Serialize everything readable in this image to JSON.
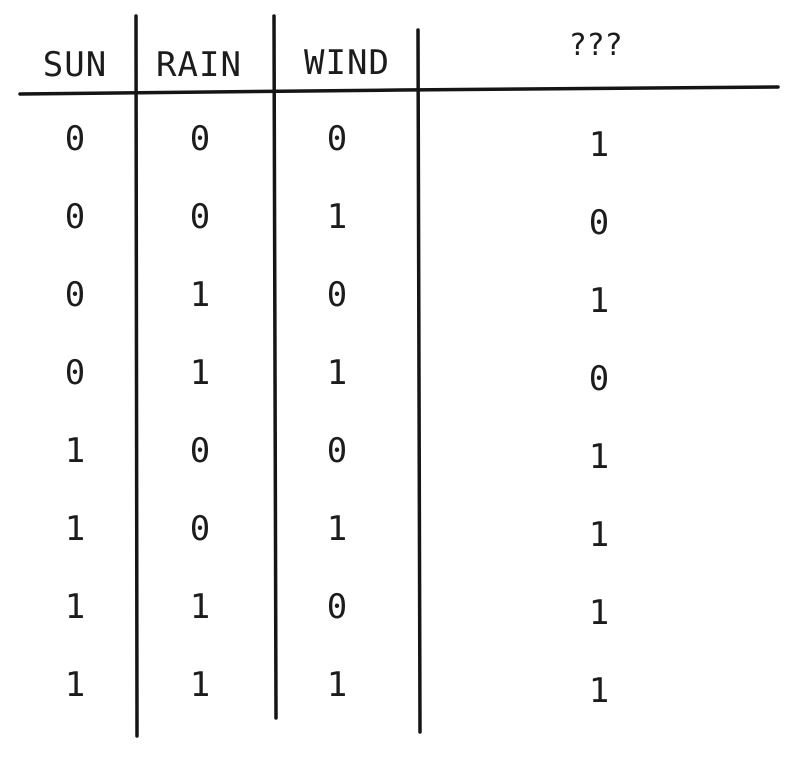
{
  "table": {
    "headers": [
      "SUN",
      "RAIN",
      "WIND",
      "???"
    ],
    "rows": [
      [
        "0",
        "0",
        "0",
        "1"
      ],
      [
        "0",
        "0",
        "1",
        "0"
      ],
      [
        "0",
        "1",
        "0",
        "1"
      ],
      [
        "0",
        "1",
        "1",
        "0"
      ],
      [
        "1",
        "0",
        "0",
        "1"
      ],
      [
        "1",
        "0",
        "1",
        "1"
      ],
      [
        "1",
        "1",
        "0",
        "1"
      ],
      [
        "1",
        "1",
        "1",
        "1"
      ]
    ]
  },
  "colors": {
    "ink": "#1c1c1c",
    "unknown_header": "#1f6fc4"
  }
}
